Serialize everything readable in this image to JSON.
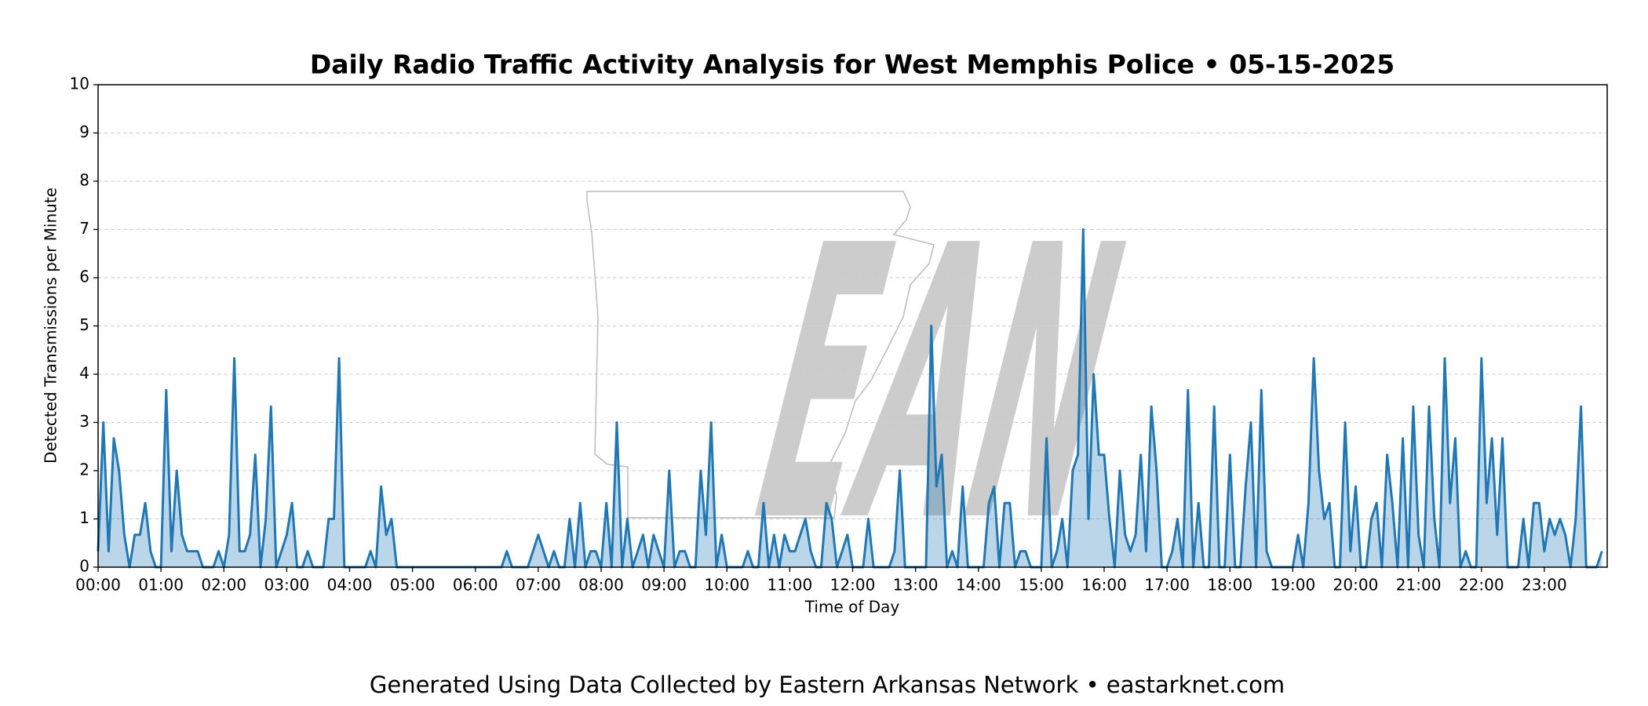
{
  "chart_data": {
    "type": "line",
    "title": "Daily Radio Traffic Activity Analysis for West Memphis Police • 05-15-2025",
    "ylabel": "Detected Transmissions per Minute",
    "xlabel": "Time of Day",
    "footer": "Generated Using Data Collected by Eastern Arkansas Network • eastarknet.com",
    "watermark": "EAN",
    "xlim": [
      0,
      1440
    ],
    "ylim": [
      0,
      10
    ],
    "yticks": [
      0,
      1,
      2,
      3,
      4,
      5,
      6,
      7,
      8,
      9,
      10
    ],
    "xticks": [
      {
        "value": 0,
        "label": "00:00"
      },
      {
        "value": 60,
        "label": "01:00"
      },
      {
        "value": 120,
        "label": "02:00"
      },
      {
        "value": 180,
        "label": "03:00"
      },
      {
        "value": 240,
        "label": "04:00"
      },
      {
        "value": 300,
        "label": "05:00"
      },
      {
        "value": 360,
        "label": "06:00"
      },
      {
        "value": 420,
        "label": "07:00"
      },
      {
        "value": 480,
        "label": "08:00"
      },
      {
        "value": 540,
        "label": "09:00"
      },
      {
        "value": 600,
        "label": "10:00"
      },
      {
        "value": 660,
        "label": "11:00"
      },
      {
        "value": 720,
        "label": "12:00"
      },
      {
        "value": 780,
        "label": "13:00"
      },
      {
        "value": 840,
        "label": "14:00"
      },
      {
        "value": 900,
        "label": "15:00"
      },
      {
        "value": 960,
        "label": "16:00"
      },
      {
        "value": 1020,
        "label": "17:00"
      },
      {
        "value": 1080,
        "label": "18:00"
      },
      {
        "value": 1140,
        "label": "19:00"
      },
      {
        "value": 1200,
        "label": "20:00"
      },
      {
        "value": 1260,
        "label": "21:00"
      },
      {
        "value": 1320,
        "label": "22:00"
      },
      {
        "value": 1380,
        "label": "23:00"
      }
    ],
    "grid": true,
    "color": "#1f77b4",
    "x": [
      0,
      5,
      10,
      15,
      20,
      25,
      30,
      35,
      40,
      45,
      50,
      55,
      60,
      65,
      70,
      75,
      80,
      85,
      90,
      95,
      100,
      105,
      110,
      115,
      120,
      125,
      130,
      135,
      140,
      145,
      150,
      155,
      160,
      165,
      170,
      175,
      180,
      185,
      190,
      195,
      200,
      205,
      210,
      215,
      220,
      225,
      230,
      235,
      240,
      245,
      250,
      255,
      260,
      265,
      270,
      275,
      280,
      285,
      290,
      295,
      300,
      305,
      310,
      315,
      320,
      325,
      330,
      335,
      340,
      345,
      350,
      355,
      360,
      365,
      370,
      375,
      380,
      385,
      390,
      395,
      400,
      405,
      410,
      415,
      420,
      425,
      430,
      435,
      440,
      445,
      450,
      455,
      460,
      465,
      470,
      475,
      480,
      485,
      490,
      495,
      500,
      505,
      510,
      515,
      520,
      525,
      530,
      535,
      540,
      545,
      550,
      555,
      560,
      565,
      570,
      575,
      580,
      585,
      590,
      595,
      600,
      605,
      610,
      615,
      620,
      625,
      630,
      635,
      640,
      645,
      650,
      655,
      660,
      665,
      670,
      675,
      680,
      685,
      690,
      695,
      700,
      705,
      710,
      715,
      720,
      725,
      730,
      735,
      740,
      745,
      750,
      755,
      760,
      765,
      770,
      775,
      780,
      785,
      790,
      795,
      800,
      805,
      810,
      815,
      820,
      825,
      830,
      835,
      840,
      845,
      850,
      855,
      860,
      865,
      870,
      875,
      880,
      885,
      890,
      895,
      900,
      905,
      910,
      915,
      920,
      925,
      930,
      935,
      940,
      945,
      950,
      955,
      960,
      965,
      970,
      975,
      980,
      985,
      990,
      995,
      1000,
      1005,
      1010,
      1015,
      1020,
      1025,
      1030,
      1035,
      1040,
      1045,
      1050,
      1055,
      1060,
      1065,
      1070,
      1075,
      1080,
      1085,
      1090,
      1095,
      1100,
      1105,
      1110,
      1115,
      1120,
      1125,
      1130,
      1135,
      1140,
      1145,
      1150,
      1155,
      1160,
      1165,
      1170,
      1175,
      1180,
      1185,
      1190,
      1195,
      1200,
      1205,
      1210,
      1215,
      1220,
      1225,
      1230,
      1235,
      1240,
      1245,
      1250,
      1255,
      1260,
      1265,
      1270,
      1275,
      1280,
      1285,
      1290,
      1295,
      1300,
      1305,
      1310,
      1315,
      1320,
      1325,
      1330,
      1335,
      1340,
      1345,
      1350,
      1355,
      1360,
      1365,
      1370,
      1375,
      1380,
      1385,
      1390,
      1395,
      1400,
      1405,
      1410,
      1415,
      1420,
      1425,
      1430,
      1435
    ],
    "values": [
      0.33,
      3,
      0.33,
      2.67,
      2,
      0.67,
      0,
      0.67,
      0.67,
      1.33,
      0.33,
      0,
      0,
      3.67,
      0.33,
      2,
      0.67,
      0.33,
      0.33,
      0.33,
      0,
      0,
      0,
      0.33,
      0,
      0.67,
      4.33,
      0.33,
      0.33,
      0.67,
      2.33,
      0,
      1,
      3.33,
      0,
      0.33,
      0.67,
      1.33,
      0,
      0,
      0.33,
      0,
      0,
      0,
      1,
      1,
      4.33,
      0,
      0,
      0,
      0,
      0,
      0.33,
      0,
      1.67,
      0.67,
      1,
      0,
      0,
      0,
      0,
      0,
      0,
      0,
      0,
      0,
      0,
      0,
      0,
      0,
      0,
      0,
      0,
      0,
      0,
      0,
      0,
      0,
      0.33,
      0,
      0,
      0,
      0,
      0.33,
      0.67,
      0.33,
      0,
      0.33,
      0,
      0,
      1,
      0,
      1.33,
      0,
      0.33,
      0.33,
      0,
      1.33,
      0,
      3,
      0,
      1,
      0,
      0.33,
      0.67,
      0,
      0.67,
      0.33,
      0,
      2,
      0,
      0.33,
      0.33,
      0,
      0,
      2,
      0.67,
      3,
      0,
      0.67,
      0,
      0,
      0,
      0,
      0.33,
      0,
      0,
      1.33,
      0,
      0.67,
      0,
      0.67,
      0.33,
      0.33,
      0.67,
      1,
      0.33,
      0,
      0,
      1.33,
      1,
      0,
      0.33,
      0.67,
      0,
      0,
      0,
      1,
      0,
      0,
      0,
      0,
      0.33,
      2,
      0,
      0,
      0,
      0,
      0,
      5,
      1.67,
      2.33,
      0,
      0.33,
      0,
      1.67,
      0,
      0,
      0,
      0,
      1.33,
      1.67,
      0,
      1.33,
      1.33,
      0,
      0.33,
      0.33,
      0,
      0,
      0,
      2.67,
      0,
      0.33,
      1,
      0,
      2,
      2.33,
      7,
      1,
      4,
      2.33,
      2.33,
      1,
      0,
      2,
      0.67,
      0.33,
      0.67,
      2.33,
      0.33,
      3.33,
      2,
      0,
      0,
      0.33,
      1,
      0,
      3.67,
      0,
      1.33,
      0,
      0,
      3.33,
      0,
      0,
      2.33,
      0,
      0,
      1.67,
      3,
      0,
      3.67,
      0.33,
      0,
      0,
      0,
      0,
      0,
      0.67,
      0,
      1.33,
      4.33,
      2,
      1,
      1.33,
      0,
      0,
      3,
      0.33,
      1.67,
      0,
      0,
      1,
      1.33,
      0,
      2.33,
      1.33,
      0,
      2.67,
      0,
      3.33,
      0.67,
      0,
      3.33,
      1,
      0,
      4.33,
      1.33,
      2.67,
      0,
      0.33,
      0,
      0,
      4.33,
      1.33,
      2.67,
      0.67,
      2.67,
      0,
      0,
      0,
      1,
      0,
      1.33,
      1.33,
      0.33,
      1,
      0.67,
      1,
      0.67,
      0,
      1,
      3.33,
      0,
      0,
      0,
      0.33
    ]
  }
}
